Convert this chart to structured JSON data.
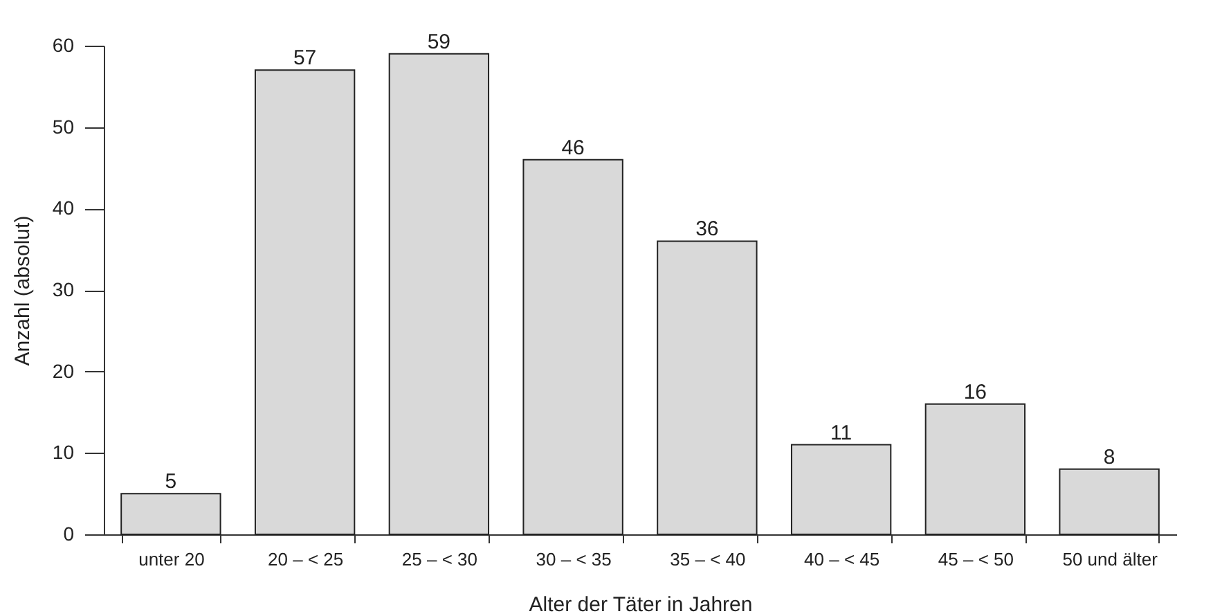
{
  "chart_data": {
    "type": "bar",
    "xlabel": "Alter der Täter in Jahren",
    "ylabel": "Anzahl (absolut)",
    "categories": [
      "unter 20",
      "20 – < 25",
      "25 – < 30",
      "30 – < 35",
      "35 – < 40",
      "40 – < 45",
      "45 – < 50",
      "50 und älter"
    ],
    "values": [
      5,
      57,
      59,
      46,
      36,
      11,
      16,
      8
    ],
    "color": "#d9d9d9",
    "ylim": [
      0,
      60
    ],
    "yticks": [
      0,
      10,
      20,
      30,
      40,
      50,
      60
    ],
    "grid": false,
    "data_labels": true
  }
}
